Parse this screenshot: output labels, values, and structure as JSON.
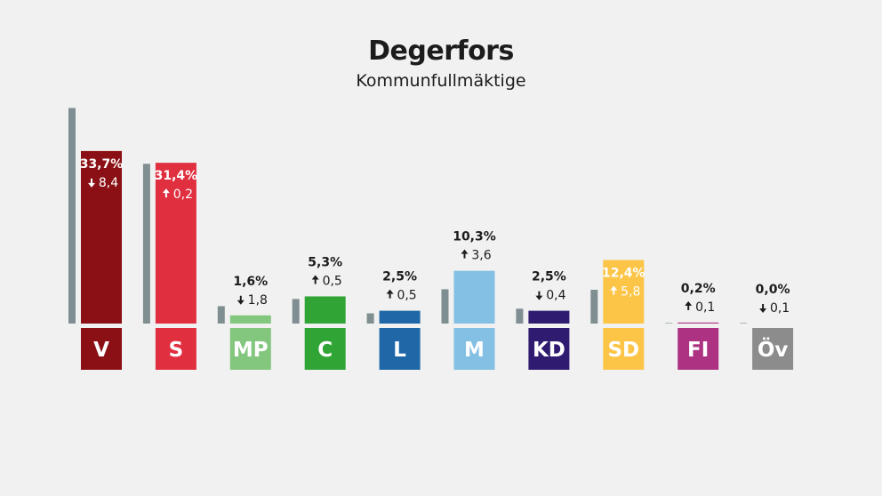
{
  "header": {
    "title": "Degerfors",
    "subtitle": "Kommunfullmäktige"
  },
  "colors": {
    "background": "#f1f1f1",
    "previous_bar": "#7f8e91",
    "label_dark": "#1c1c1c",
    "label_light": "#ffffff"
  },
  "chart_data": {
    "type": "bar",
    "title": "Degerfors",
    "subtitle": "Kommunfullmäktige",
    "categories": [
      "V",
      "S",
      "MP",
      "C",
      "L",
      "M",
      "KD",
      "SD",
      "FI",
      "Öv"
    ],
    "series": [
      {
        "name": "",
        "values": [
          33.7,
          31.4,
          1.6,
          5.3,
          2.5,
          10.3,
          2.5,
          12.4,
          0.2,
          0.0
        ],
        "value_labels": [
          "33,7%",
          "31,4%",
          "1,6%",
          "5,3%",
          "2,5%",
          "10,3%",
          "2,5%",
          "12,4%",
          "0,2%",
          "0,0%"
        ]
      },
      {
        "name": "",
        "values": [
          42.1,
          31.2,
          3.4,
          4.8,
          2.0,
          6.7,
          2.9,
          6.6,
          0.1,
          0.1
        ]
      }
    ],
    "changes": [
      {
        "direction": "down",
        "label": "8,4"
      },
      {
        "direction": "up",
        "label": "0,2"
      },
      {
        "direction": "down",
        "label": "1,8"
      },
      {
        "direction": "up",
        "label": "0,5"
      },
      {
        "direction": "up",
        "label": "0,5"
      },
      {
        "direction": "up",
        "label": "3,6"
      },
      {
        "direction": "down",
        "label": "0,4"
      },
      {
        "direction": "up",
        "label": "5,8"
      },
      {
        "direction": "up",
        "label": "0,1"
      },
      {
        "direction": "down",
        "label": "0,1"
      }
    ],
    "party_colors": [
      "#8b1015",
      "#e03040",
      "#83c77f",
      "#30a535",
      "#1f67a6",
      "#83c0e4",
      "#2f1c70",
      "#fcc547",
      "#ad3382",
      "#8c8c8c"
    ],
    "ylim": [
      0,
      45
    ],
    "grid": false,
    "legend": "none"
  }
}
